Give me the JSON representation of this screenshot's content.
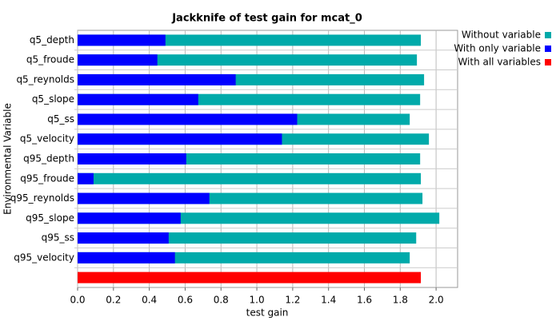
{
  "chart_data": {
    "type": "bar",
    "orientation": "horizontal",
    "overlay": true,
    "title": "Jackknife of test gain for mcat_0",
    "x_label": "test gain",
    "y_label": "Environmental Variable",
    "categories": [
      "q5_depth",
      "q5_froude",
      "q5_reynolds",
      "q5_slope",
      "q5_ss",
      "q5_velocity",
      "q95_depth",
      "q95_froude",
      "q95_reynolds",
      "q95_slope",
      "q95_ss",
      "q95_velocity",
      null
    ],
    "series": [
      {
        "name": "Without variable",
        "color": "#00aaaa",
        "values": [
          1.915,
          1.893,
          1.933,
          1.911,
          1.853,
          1.96,
          1.911,
          1.915,
          1.924,
          2.018,
          1.889,
          1.853,
          null
        ]
      },
      {
        "name": "With only variable",
        "color": "#0000ff",
        "values": [
          0.49,
          0.445,
          0.882,
          0.673,
          1.225,
          1.14,
          0.606,
          0.089,
          0.735,
          0.575,
          0.508,
          0.543,
          null
        ]
      },
      {
        "name": "With all variables",
        "color": "#ff0000",
        "values": [
          null,
          null,
          null,
          null,
          null,
          null,
          null,
          null,
          null,
          null,
          null,
          null,
          1.915
        ]
      }
    ],
    "xlim": [
      0,
      2.12
    ],
    "xticks": [
      {
        "value": 0,
        "label": "0.0"
      },
      0.2,
      0.4,
      0.6,
      0.8,
      {
        "value": 1,
        "label": "1.0"
      },
      1.2,
      1.4,
      1.6,
      1.8,
      {
        "value": 2,
        "label": "2.0"
      }
    ],
    "grid": true,
    "legend": "top-right"
  }
}
